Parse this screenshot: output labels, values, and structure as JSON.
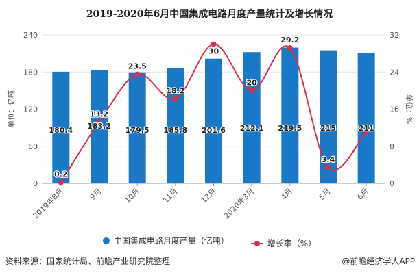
{
  "chart_data": {
    "type": "bar+line",
    "title": "2019-2020年6月中国集成电路月度产量统计及增长情况",
    "categories": [
      "2019年8月",
      "9月",
      "10月",
      "11月",
      "12月",
      "2020年3月",
      "4月",
      "5月",
      "6月"
    ],
    "series": [
      {
        "name": "中国集成电路月度产量（亿吨）",
        "type": "bar",
        "axis": "left",
        "color": "#1a79c6",
        "values": [
          180.4,
          183.2,
          179.5,
          185.8,
          201.6,
          212.1,
          219.5,
          215,
          211
        ]
      },
      {
        "name": "增长率（%）",
        "type": "line",
        "axis": "right",
        "color": "#d9304a",
        "values": [
          0.2,
          13.2,
          23.5,
          18.2,
          30,
          20,
          29.2,
          3.4,
          11.2
        ],
        "labels": [
          "0.2",
          "13.2",
          "23.5",
          "18.2",
          "30",
          "20",
          "29.2",
          "3.4",
          ""
        ]
      }
    ],
    "ylabel_left": "单位：亿吨",
    "ylabel_right": "单位：%",
    "ylim_left": [
      0,
      240
    ],
    "ylim_right": [
      0,
      32
    ],
    "yticks_left": [
      "0",
      "60",
      "120",
      "180",
      "240"
    ],
    "yticks_right": [
      "0",
      "8",
      "16",
      "24",
      "32"
    ],
    "grid": true,
    "legend_position": "bottom"
  },
  "source": "资料来源：国家统计局、前瞻产业研究院整理",
  "credit": "@前瞻经济学人APP"
}
